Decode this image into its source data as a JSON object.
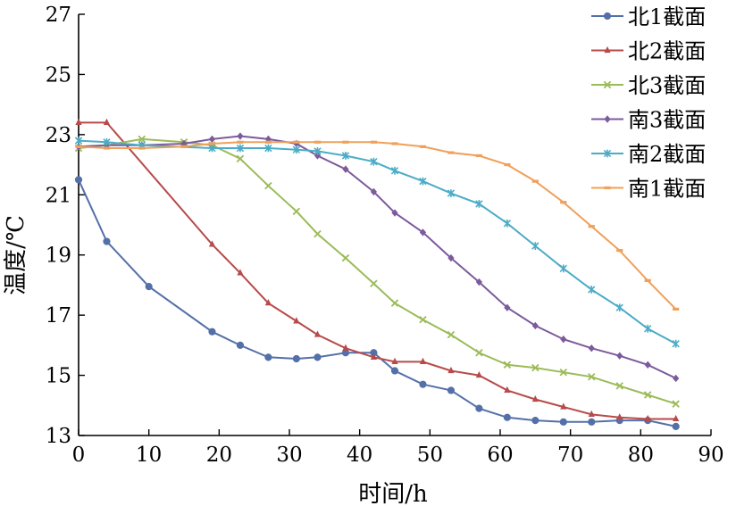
{
  "chart_data": {
    "type": "line",
    "xlabel": "时间/h",
    "ylabel": "温度/℃",
    "xlim": [
      0,
      90
    ],
    "ylim": [
      13,
      27
    ],
    "xticks": [
      0,
      10,
      20,
      30,
      40,
      50,
      60,
      70,
      80,
      90
    ],
    "yticks": [
      13,
      15,
      17,
      19,
      21,
      23,
      25,
      27
    ],
    "grid": false,
    "legend_position": "top-right",
    "series": [
      {
        "name": "北1截面",
        "color": "#5470a8",
        "marker": "circle",
        "x": [
          0,
          4,
          10,
          19,
          23,
          27,
          31,
          34,
          38,
          42,
          45,
          49,
          53,
          57,
          61,
          65,
          69,
          73,
          77,
          81,
          85
        ],
        "y": [
          21.5,
          19.45,
          17.95,
          16.45,
          16.0,
          15.6,
          15.55,
          15.6,
          15.75,
          15.75,
          15.15,
          14.7,
          14.5,
          13.9,
          13.6,
          13.5,
          13.45,
          13.45,
          13.5,
          13.5,
          13.3
        ]
      },
      {
        "name": "北2截面",
        "color": "#b84a4a",
        "marker": "triangle",
        "x": [
          0,
          4,
          19,
          23,
          27,
          31,
          34,
          38,
          42,
          45,
          49,
          53,
          57,
          61,
          65,
          69,
          73,
          77,
          81,
          85
        ],
        "y": [
          23.4,
          23.4,
          19.35,
          18.4,
          17.4,
          16.8,
          16.35,
          15.9,
          15.6,
          15.45,
          15.45,
          15.15,
          15.0,
          14.5,
          14.2,
          13.95,
          13.7,
          13.6,
          13.55,
          13.55
        ]
      },
      {
        "name": "北3截面",
        "color": "#9bbb59",
        "marker": "x",
        "x": [
          0,
          4,
          9,
          15,
          19,
          23,
          27,
          31,
          34,
          38,
          42,
          45,
          49,
          53,
          57,
          61,
          65,
          69,
          73,
          77,
          81,
          85
        ],
        "y": [
          22.55,
          22.65,
          22.85,
          22.75,
          22.65,
          22.2,
          21.3,
          20.45,
          19.7,
          18.9,
          18.05,
          17.4,
          16.85,
          16.35,
          15.75,
          15.35,
          15.25,
          15.1,
          14.95,
          14.65,
          14.35,
          14.05
        ]
      },
      {
        "name": "南3截面",
        "color": "#7c5a9c",
        "marker": "diamond",
        "x": [
          0,
          4,
          9,
          15,
          19,
          23,
          27,
          31,
          34,
          38,
          42,
          45,
          49,
          53,
          57,
          61,
          65,
          69,
          73,
          77,
          81,
          85
        ],
        "y": [
          22.6,
          22.65,
          22.65,
          22.7,
          22.85,
          22.95,
          22.85,
          22.7,
          22.3,
          21.85,
          21.1,
          20.4,
          19.75,
          18.9,
          18.1,
          17.25,
          16.65,
          16.2,
          15.9,
          15.65,
          15.35,
          14.9
        ]
      },
      {
        "name": "南2截面",
        "color": "#4bacc6",
        "marker": "asterisk",
        "x": [
          0,
          4,
          9,
          19,
          23,
          27,
          31,
          34,
          38,
          42,
          45,
          49,
          53,
          57,
          61,
          65,
          69,
          73,
          77,
          81,
          85
        ],
        "y": [
          22.8,
          22.75,
          22.65,
          22.55,
          22.55,
          22.55,
          22.5,
          22.45,
          22.3,
          22.1,
          21.8,
          21.45,
          21.05,
          20.7,
          20.05,
          19.3,
          18.55,
          17.85,
          17.25,
          16.55,
          16.05
        ]
      },
      {
        "name": "南1截面",
        "color": "#f0a05a",
        "marker": "dash",
        "x": [
          0,
          4,
          9,
          15,
          19,
          23,
          27,
          31,
          34,
          38,
          42,
          45,
          49,
          53,
          57,
          61,
          65,
          69,
          73,
          77,
          81,
          85
        ],
        "y": [
          22.6,
          22.55,
          22.55,
          22.6,
          22.7,
          22.75,
          22.75,
          22.75,
          22.75,
          22.75,
          22.75,
          22.7,
          22.6,
          22.4,
          22.3,
          22.0,
          21.45,
          20.75,
          19.95,
          19.15,
          18.15,
          17.2
        ]
      }
    ]
  }
}
